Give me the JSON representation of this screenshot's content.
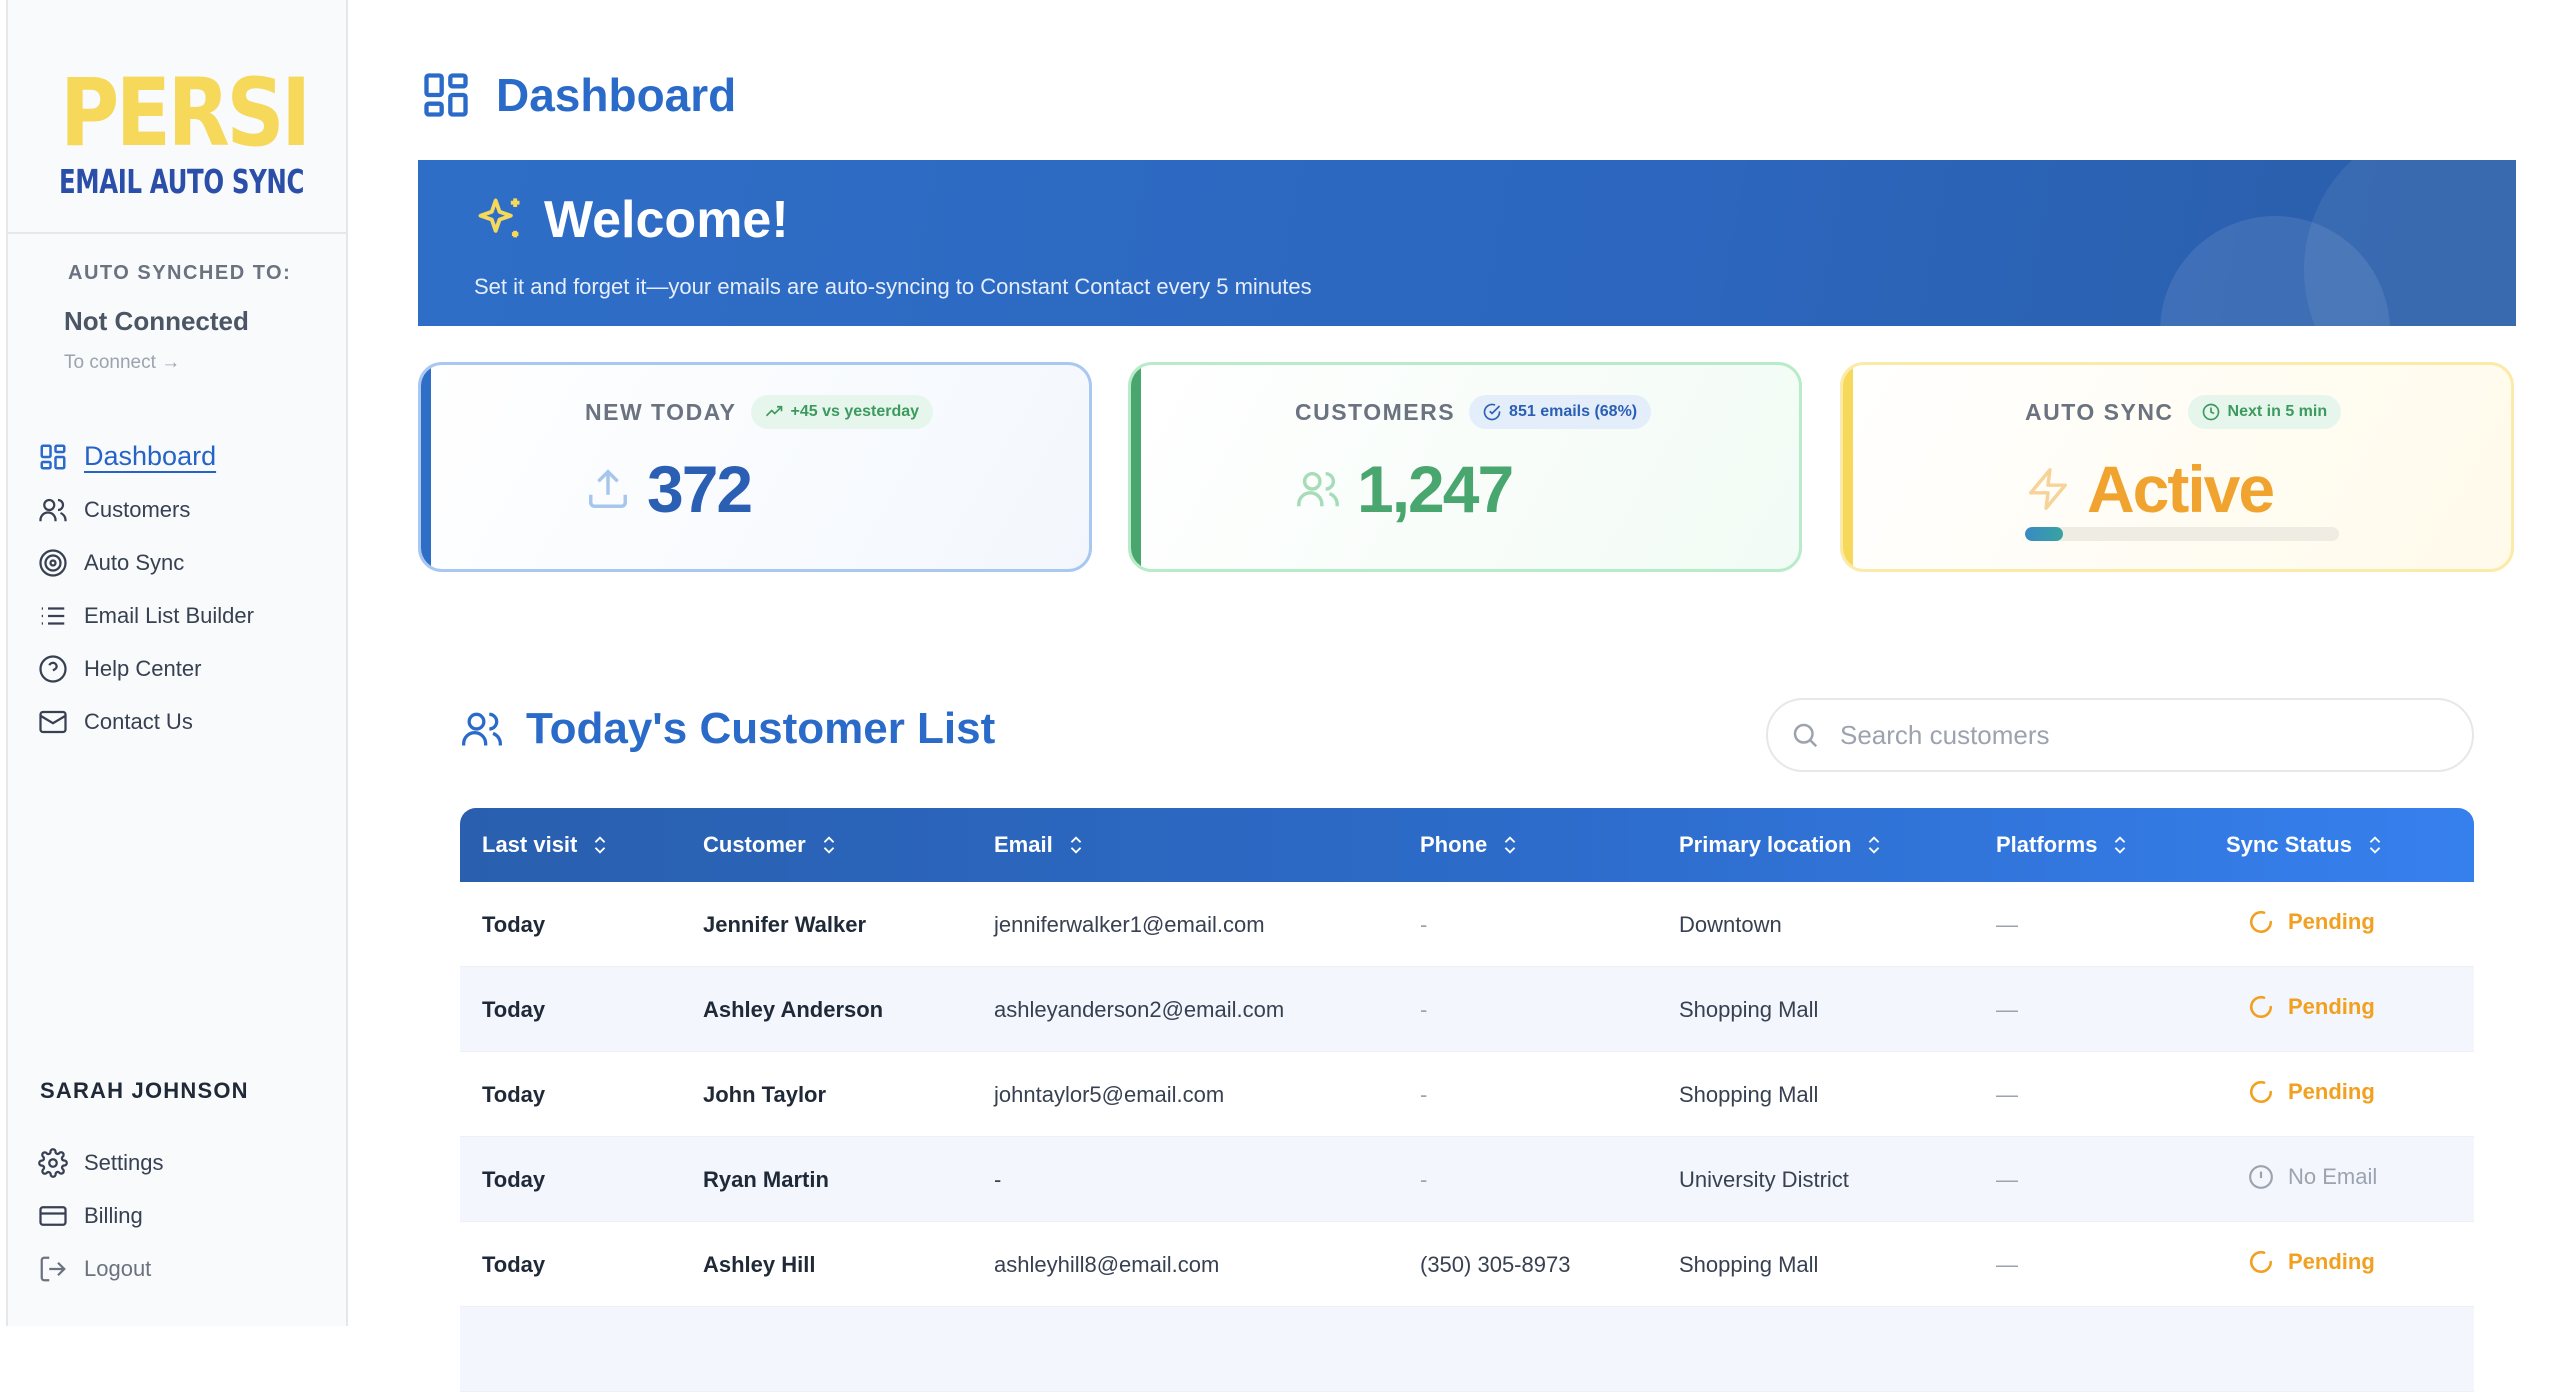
{
  "brand": {
    "logo_big": "PERSI",
    "logo_small": "EMAIL AUTO SYNC"
  },
  "sidebar": {
    "sync_label": "AUTO SYNCHED TO:",
    "sync_status": "Not Connected",
    "connect_link": "To connect",
    "nav": [
      {
        "label": "Dashboard",
        "icon": "dashboard-icon",
        "active": true
      },
      {
        "label": "Customers",
        "icon": "users-icon"
      },
      {
        "label": "Auto Sync",
        "icon": "target-icon"
      },
      {
        "label": "Email List Builder",
        "icon": "list-icon"
      },
      {
        "label": "Help Center",
        "icon": "help-icon"
      },
      {
        "label": "Contact Us",
        "icon": "mail-icon"
      }
    ],
    "user_name": "SARAH JOHNSON",
    "bottom": [
      {
        "label": "Settings",
        "icon": "gear-icon"
      },
      {
        "label": "Billing",
        "icon": "credit-card-icon"
      },
      {
        "label": "Logout",
        "icon": "logout-icon"
      }
    ]
  },
  "header": {
    "title": "Dashboard"
  },
  "welcome": {
    "title": "Welcome!",
    "subtitle": "Set it and forget it—your emails are auto-syncing to Constant Contact every 5 minutes"
  },
  "cards": {
    "new_today": {
      "label": "NEW TODAY",
      "badge": "+45 vs yesterday",
      "value": "372"
    },
    "customers": {
      "label": "CUSTOMERS",
      "badge": "851 emails (68%)",
      "value": "1,247"
    },
    "auto_sync": {
      "label": "AUTO SYNC",
      "badge": "Next in 5 min",
      "value": "Active",
      "progress": 0.12
    }
  },
  "colors": {
    "primary": "#2a6ac8",
    "green": "#4aa66f",
    "amber": "#f2a020",
    "yellow": "#f6d85a"
  },
  "customer_list": {
    "title": "Today's Customer List",
    "search_placeholder": "Search customers",
    "columns": [
      "Last visit",
      "Customer",
      "Email",
      "Phone",
      "Primary location",
      "Platforms",
      "Sync Status"
    ],
    "rows": [
      {
        "visit": "Today",
        "customer": "Jennifer Walker",
        "email": "jenniferwalker1@email.com",
        "phone": "-",
        "location": "Downtown",
        "platforms": "—",
        "status": "Pending"
      },
      {
        "visit": "Today",
        "customer": "Ashley Anderson",
        "email": "ashleyanderson2@email.com",
        "phone": "-",
        "location": "Shopping Mall",
        "platforms": "—",
        "status": "Pending"
      },
      {
        "visit": "Today",
        "customer": "John Taylor",
        "email": "johntaylor5@email.com",
        "phone": "-",
        "location": "Shopping Mall",
        "platforms": "—",
        "status": "Pending"
      },
      {
        "visit": "Today",
        "customer": "Ryan Martin",
        "email": "-",
        "phone": "-",
        "location": "University District",
        "platforms": "—",
        "status": "No Email"
      },
      {
        "visit": "Today",
        "customer": "Ashley Hill",
        "email": "ashleyhill8@email.com",
        "phone": "(350) 305-8973",
        "location": "Shopping Mall",
        "platforms": "—",
        "status": "Pending"
      }
    ]
  }
}
